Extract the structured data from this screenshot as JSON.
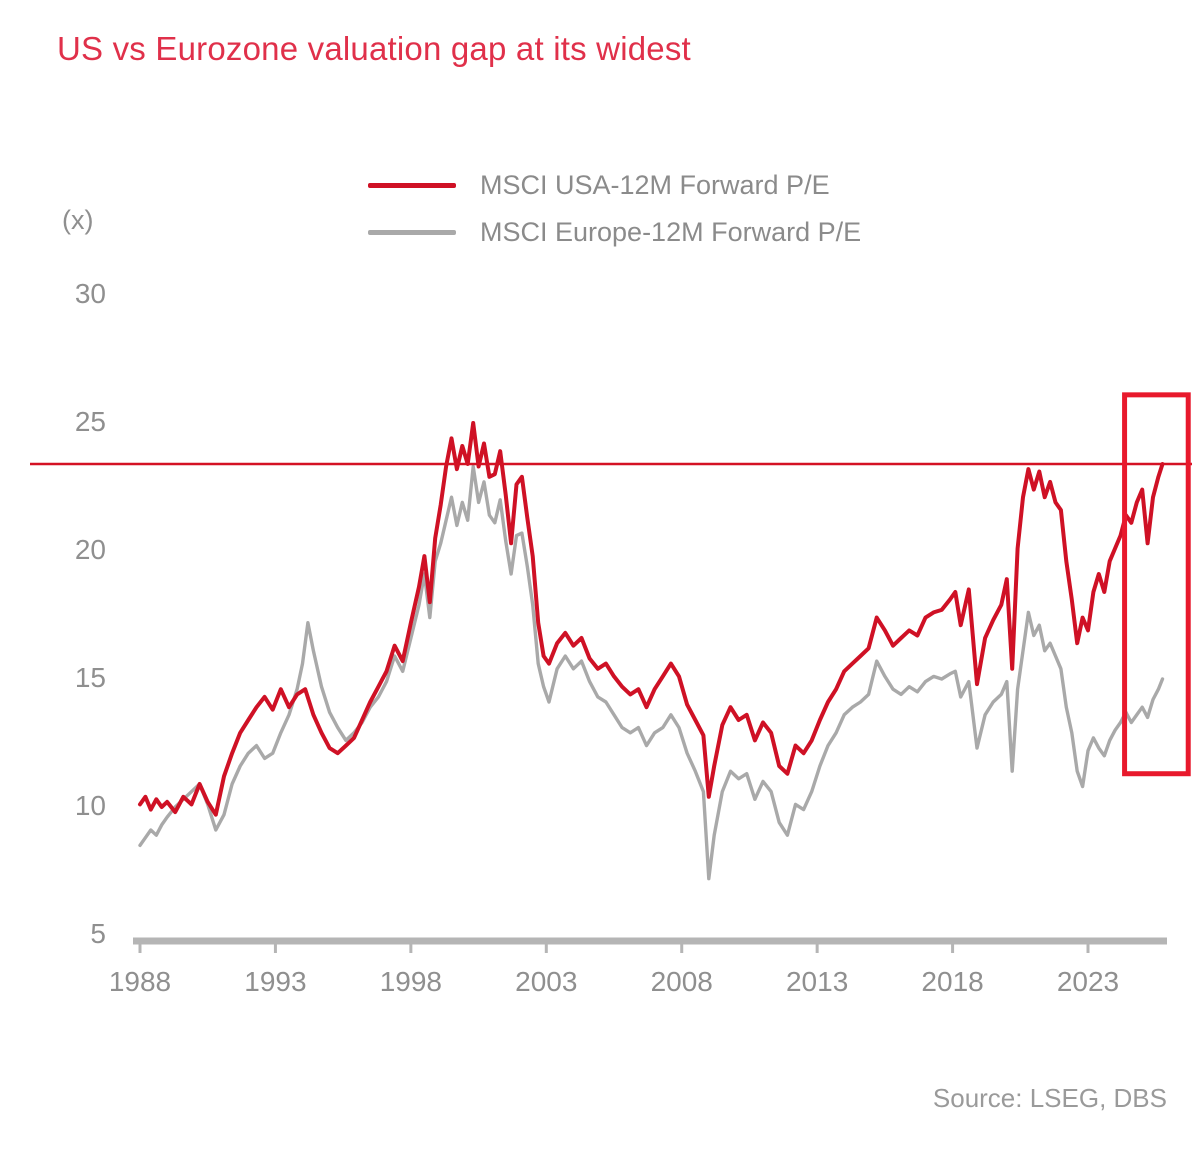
{
  "chart_data": {
    "type": "line",
    "title": "US vs Eurozone valuation gap at its widest",
    "unit": "(x)",
    "source": "Source: LSEG, DBS",
    "grid": false,
    "legend_position": "top-center",
    "x_ticks": [
      1988,
      1993,
      1998,
      2003,
      2008,
      2013,
      2018,
      2023
    ],
    "y_ticks": [
      30,
      25,
      20,
      15,
      10,
      5
    ],
    "xlim": [
      1987.5,
      2026.9
    ],
    "ylim": [
      5,
      30
    ],
    "colors": {
      "title": "#e0304a",
      "axis_text": "#8f8f8f",
      "axis_bar": "#b5b5b5",
      "hline": "#d41224",
      "highlight": "#e8192c"
    },
    "annotations": {
      "hline_value": 23.4,
      "highlight_rect": {
        "x1_year": 2024.35,
        "x2_year": 2026.7,
        "y_top_value": 26.1,
        "y_bottom_value": 11.3
      }
    },
    "series": [
      {
        "name": "MSCI USA-12M Forward P/E",
        "color": "#cf1125",
        "points": [
          [
            1988.0,
            10.1
          ],
          [
            1988.2,
            10.4
          ],
          [
            1988.4,
            9.9
          ],
          [
            1988.6,
            10.3
          ],
          [
            1988.8,
            10.0
          ],
          [
            1989.0,
            10.2
          ],
          [
            1989.3,
            9.8
          ],
          [
            1989.6,
            10.4
          ],
          [
            1989.9,
            10.1
          ],
          [
            1990.2,
            10.9
          ],
          [
            1990.5,
            10.2
          ],
          [
            1990.8,
            9.7
          ],
          [
            1991.1,
            11.2
          ],
          [
            1991.4,
            12.1
          ],
          [
            1991.7,
            12.9
          ],
          [
            1992.0,
            13.4
          ],
          [
            1992.3,
            13.9
          ],
          [
            1992.6,
            14.3
          ],
          [
            1992.9,
            13.8
          ],
          [
            1993.2,
            14.6
          ],
          [
            1993.5,
            13.9
          ],
          [
            1993.8,
            14.4
          ],
          [
            1994.1,
            14.6
          ],
          [
            1994.4,
            13.6
          ],
          [
            1994.7,
            12.9
          ],
          [
            1995.0,
            12.3
          ],
          [
            1995.3,
            12.1
          ],
          [
            1995.6,
            12.4
          ],
          [
            1995.9,
            12.7
          ],
          [
            1996.2,
            13.4
          ],
          [
            1996.5,
            14.1
          ],
          [
            1996.8,
            14.7
          ],
          [
            1997.1,
            15.3
          ],
          [
            1997.4,
            16.3
          ],
          [
            1997.7,
            15.7
          ],
          [
            1998.0,
            17.2
          ],
          [
            1998.3,
            18.6
          ],
          [
            1998.5,
            19.8
          ],
          [
            1998.7,
            18.0
          ],
          [
            1998.9,
            20.5
          ],
          [
            1999.1,
            21.8
          ],
          [
            1999.3,
            23.3
          ],
          [
            1999.5,
            24.4
          ],
          [
            1999.7,
            23.2
          ],
          [
            1999.9,
            24.1
          ],
          [
            2000.1,
            23.4
          ],
          [
            2000.3,
            25.0
          ],
          [
            2000.5,
            23.3
          ],
          [
            2000.7,
            24.2
          ],
          [
            2000.9,
            22.9
          ],
          [
            2001.1,
            23.0
          ],
          [
            2001.3,
            23.9
          ],
          [
            2001.5,
            22.2
          ],
          [
            2001.7,
            20.3
          ],
          [
            2001.9,
            22.6
          ],
          [
            2002.1,
            22.9
          ],
          [
            2002.3,
            21.3
          ],
          [
            2002.5,
            19.8
          ],
          [
            2002.7,
            17.2
          ],
          [
            2002.9,
            15.9
          ],
          [
            2003.1,
            15.6
          ],
          [
            2003.4,
            16.4
          ],
          [
            2003.7,
            16.8
          ],
          [
            2004.0,
            16.3
          ],
          [
            2004.3,
            16.6
          ],
          [
            2004.6,
            15.8
          ],
          [
            2004.9,
            15.4
          ],
          [
            2005.2,
            15.6
          ],
          [
            2005.5,
            15.1
          ],
          [
            2005.8,
            14.7
          ],
          [
            2006.1,
            14.4
          ],
          [
            2006.4,
            14.6
          ],
          [
            2006.7,
            13.9
          ],
          [
            2007.0,
            14.6
          ],
          [
            2007.3,
            15.1
          ],
          [
            2007.6,
            15.6
          ],
          [
            2007.9,
            15.1
          ],
          [
            2008.2,
            14.0
          ],
          [
            2008.5,
            13.4
          ],
          [
            2008.8,
            12.8
          ],
          [
            2009.0,
            10.4
          ],
          [
            2009.2,
            11.6
          ],
          [
            2009.5,
            13.2
          ],
          [
            2009.8,
            13.9
          ],
          [
            2010.1,
            13.4
          ],
          [
            2010.4,
            13.6
          ],
          [
            2010.7,
            12.6
          ],
          [
            2011.0,
            13.3
          ],
          [
            2011.3,
            12.9
          ],
          [
            2011.6,
            11.6
          ],
          [
            2011.9,
            11.3
          ],
          [
            2012.2,
            12.4
          ],
          [
            2012.5,
            12.1
          ],
          [
            2012.8,
            12.6
          ],
          [
            2013.1,
            13.4
          ],
          [
            2013.4,
            14.1
          ],
          [
            2013.7,
            14.6
          ],
          [
            2014.0,
            15.3
          ],
          [
            2014.3,
            15.6
          ],
          [
            2014.6,
            15.9
          ],
          [
            2014.9,
            16.2
          ],
          [
            2015.2,
            17.4
          ],
          [
            2015.5,
            16.9
          ],
          [
            2015.8,
            16.3
          ],
          [
            2016.1,
            16.6
          ],
          [
            2016.4,
            16.9
          ],
          [
            2016.7,
            16.7
          ],
          [
            2017.0,
            17.4
          ],
          [
            2017.3,
            17.6
          ],
          [
            2017.6,
            17.7
          ],
          [
            2017.9,
            18.1
          ],
          [
            2018.1,
            18.4
          ],
          [
            2018.3,
            17.1
          ],
          [
            2018.6,
            18.5
          ],
          [
            2018.9,
            14.8
          ],
          [
            2019.2,
            16.6
          ],
          [
            2019.5,
            17.3
          ],
          [
            2019.8,
            17.9
          ],
          [
            2020.0,
            18.9
          ],
          [
            2020.2,
            15.4
          ],
          [
            2020.4,
            20.1
          ],
          [
            2020.6,
            22.1
          ],
          [
            2020.8,
            23.2
          ],
          [
            2021.0,
            22.4
          ],
          [
            2021.2,
            23.1
          ],
          [
            2021.4,
            22.1
          ],
          [
            2021.6,
            22.7
          ],
          [
            2021.8,
            21.9
          ],
          [
            2022.0,
            21.6
          ],
          [
            2022.2,
            19.6
          ],
          [
            2022.4,
            18.1
          ],
          [
            2022.6,
            16.4
          ],
          [
            2022.8,
            17.4
          ],
          [
            2023.0,
            16.9
          ],
          [
            2023.2,
            18.4
          ],
          [
            2023.4,
            19.1
          ],
          [
            2023.6,
            18.4
          ],
          [
            2023.8,
            19.6
          ],
          [
            2024.0,
            20.1
          ],
          [
            2024.2,
            20.6
          ],
          [
            2024.4,
            21.4
          ],
          [
            2024.6,
            21.1
          ],
          [
            2024.8,
            21.9
          ],
          [
            2025.0,
            22.4
          ],
          [
            2025.2,
            20.3
          ],
          [
            2025.4,
            22.1
          ],
          [
            2025.6,
            22.9
          ],
          [
            2025.75,
            23.4
          ]
        ]
      },
      {
        "name": "MSCI Europe-12M Forward P/E",
        "color": "#a9a9a9",
        "points": [
          [
            1988.0,
            8.5
          ],
          [
            1988.2,
            8.8
          ],
          [
            1988.4,
            9.1
          ],
          [
            1988.6,
            8.9
          ],
          [
            1988.8,
            9.3
          ],
          [
            1989.0,
            9.6
          ],
          [
            1989.3,
            10.0
          ],
          [
            1989.6,
            10.3
          ],
          [
            1989.9,
            10.6
          ],
          [
            1990.2,
            10.9
          ],
          [
            1990.5,
            10.1
          ],
          [
            1990.8,
            9.1
          ],
          [
            1991.1,
            9.7
          ],
          [
            1991.4,
            10.9
          ],
          [
            1991.7,
            11.6
          ],
          [
            1992.0,
            12.1
          ],
          [
            1992.3,
            12.4
          ],
          [
            1992.6,
            11.9
          ],
          [
            1992.9,
            12.1
          ],
          [
            1993.2,
            12.9
          ],
          [
            1993.5,
            13.6
          ],
          [
            1993.8,
            14.6
          ],
          [
            1994.0,
            15.6
          ],
          [
            1994.2,
            17.2
          ],
          [
            1994.4,
            16.1
          ],
          [
            1994.7,
            14.7
          ],
          [
            1995.0,
            13.7
          ],
          [
            1995.3,
            13.1
          ],
          [
            1995.6,
            12.6
          ],
          [
            1995.9,
            12.9
          ],
          [
            1996.2,
            13.3
          ],
          [
            1996.5,
            13.9
          ],
          [
            1996.8,
            14.3
          ],
          [
            1997.1,
            14.9
          ],
          [
            1997.4,
            15.9
          ],
          [
            1997.7,
            15.3
          ],
          [
            1998.0,
            16.6
          ],
          [
            1998.3,
            17.9
          ],
          [
            1998.5,
            19.1
          ],
          [
            1998.7,
            17.4
          ],
          [
            1998.9,
            19.6
          ],
          [
            1999.1,
            20.3
          ],
          [
            1999.3,
            21.2
          ],
          [
            1999.5,
            22.1
          ],
          [
            1999.7,
            21.0
          ],
          [
            1999.9,
            21.9
          ],
          [
            2000.1,
            21.2
          ],
          [
            2000.3,
            23.3
          ],
          [
            2000.5,
            21.9
          ],
          [
            2000.7,
            22.7
          ],
          [
            2000.9,
            21.4
          ],
          [
            2001.1,
            21.1
          ],
          [
            2001.3,
            22.0
          ],
          [
            2001.5,
            20.4
          ],
          [
            2001.7,
            19.1
          ],
          [
            2001.9,
            20.6
          ],
          [
            2002.1,
            20.7
          ],
          [
            2002.3,
            19.4
          ],
          [
            2002.5,
            17.9
          ],
          [
            2002.7,
            15.6
          ],
          [
            2002.9,
            14.7
          ],
          [
            2003.1,
            14.1
          ],
          [
            2003.4,
            15.4
          ],
          [
            2003.7,
            15.9
          ],
          [
            2004.0,
            15.4
          ],
          [
            2004.3,
            15.7
          ],
          [
            2004.6,
            14.9
          ],
          [
            2004.9,
            14.3
          ],
          [
            2005.2,
            14.1
          ],
          [
            2005.5,
            13.6
          ],
          [
            2005.8,
            13.1
          ],
          [
            2006.1,
            12.9
          ],
          [
            2006.4,
            13.1
          ],
          [
            2006.7,
            12.4
          ],
          [
            2007.0,
            12.9
          ],
          [
            2007.3,
            13.1
          ],
          [
            2007.6,
            13.6
          ],
          [
            2007.9,
            13.1
          ],
          [
            2008.2,
            12.1
          ],
          [
            2008.5,
            11.4
          ],
          [
            2008.8,
            10.6
          ],
          [
            2009.0,
            7.2
          ],
          [
            2009.2,
            8.9
          ],
          [
            2009.5,
            10.6
          ],
          [
            2009.8,
            11.4
          ],
          [
            2010.1,
            11.1
          ],
          [
            2010.4,
            11.3
          ],
          [
            2010.7,
            10.3
          ],
          [
            2011.0,
            11.0
          ],
          [
            2011.3,
            10.6
          ],
          [
            2011.6,
            9.4
          ],
          [
            2011.9,
            8.9
          ],
          [
            2012.2,
            10.1
          ],
          [
            2012.5,
            9.9
          ],
          [
            2012.8,
            10.6
          ],
          [
            2013.1,
            11.6
          ],
          [
            2013.4,
            12.4
          ],
          [
            2013.7,
            12.9
          ],
          [
            2014.0,
            13.6
          ],
          [
            2014.3,
            13.9
          ],
          [
            2014.6,
            14.1
          ],
          [
            2014.9,
            14.4
          ],
          [
            2015.2,
            15.7
          ],
          [
            2015.5,
            15.1
          ],
          [
            2015.8,
            14.6
          ],
          [
            2016.1,
            14.4
          ],
          [
            2016.4,
            14.7
          ],
          [
            2016.7,
            14.5
          ],
          [
            2017.0,
            14.9
          ],
          [
            2017.3,
            15.1
          ],
          [
            2017.6,
            15.0
          ],
          [
            2017.9,
            15.2
          ],
          [
            2018.1,
            15.3
          ],
          [
            2018.3,
            14.3
          ],
          [
            2018.6,
            14.9
          ],
          [
            2018.9,
            12.3
          ],
          [
            2019.2,
            13.6
          ],
          [
            2019.5,
            14.1
          ],
          [
            2019.8,
            14.4
          ],
          [
            2020.0,
            14.9
          ],
          [
            2020.2,
            11.4
          ],
          [
            2020.4,
            14.6
          ],
          [
            2020.6,
            16.1
          ],
          [
            2020.8,
            17.6
          ],
          [
            2021.0,
            16.7
          ],
          [
            2021.2,
            17.1
          ],
          [
            2021.4,
            16.1
          ],
          [
            2021.6,
            16.4
          ],
          [
            2021.8,
            15.9
          ],
          [
            2022.0,
            15.4
          ],
          [
            2022.2,
            13.9
          ],
          [
            2022.4,
            12.9
          ],
          [
            2022.6,
            11.4
          ],
          [
            2022.8,
            10.8
          ],
          [
            2023.0,
            12.2
          ],
          [
            2023.2,
            12.7
          ],
          [
            2023.4,
            12.3
          ],
          [
            2023.6,
            12.0
          ],
          [
            2023.8,
            12.6
          ],
          [
            2024.0,
            13.0
          ],
          [
            2024.2,
            13.3
          ],
          [
            2024.4,
            13.7
          ],
          [
            2024.6,
            13.3
          ],
          [
            2024.8,
            13.6
          ],
          [
            2025.0,
            13.9
          ],
          [
            2025.2,
            13.5
          ],
          [
            2025.4,
            14.2
          ],
          [
            2025.6,
            14.6
          ],
          [
            2025.75,
            15.0
          ]
        ]
      }
    ]
  }
}
